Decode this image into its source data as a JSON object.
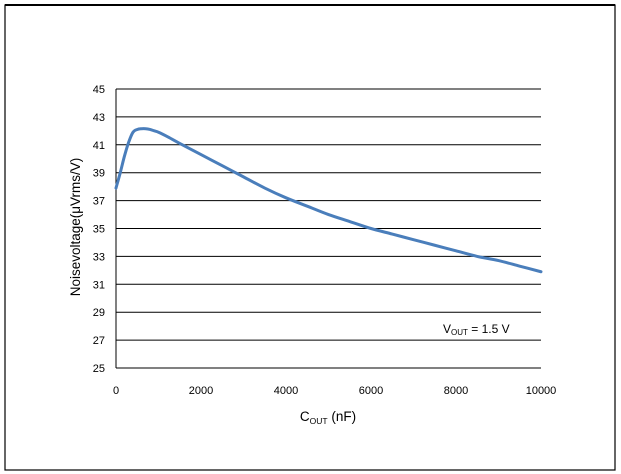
{
  "chart_data": {
    "type": "line",
    "title": "",
    "xlabel": "C",
    "xlabel_sub": "OUT",
    "xlabel_unit": " (nF)",
    "ylabel": "Noisevoltage(μVrms/V)",
    "xlim": [
      0,
      10000
    ],
    "ylim": [
      25,
      45
    ],
    "xticks": [
      0,
      2000,
      4000,
      6000,
      8000,
      10000
    ],
    "yticks": [
      25,
      27,
      29,
      31,
      33,
      35,
      37,
      39,
      41,
      43,
      45
    ],
    "grid": "horizontal",
    "annotation": {
      "main": "V",
      "sub": "OUT",
      "rest": " = 1.5 V"
    },
    "series": [
      {
        "color": "#4a7ebb",
        "x": [
          0,
          100,
          200,
          300,
          400,
          500,
          600,
          700,
          800,
          900,
          1000,
          1200,
          1500,
          2000,
          2500,
          3000,
          3500,
          4000,
          4500,
          5000,
          5500,
          6000,
          6500,
          7000,
          7500,
          8000,
          8500,
          9000,
          9500,
          10000
        ],
        "y": [
          37.9,
          39.0,
          40.2,
          41.2,
          41.9,
          42.1,
          42.15,
          42.15,
          42.1,
          42.0,
          41.9,
          41.6,
          41.1,
          40.3,
          39.5,
          38.7,
          37.9,
          37.2,
          36.6,
          36.0,
          35.5,
          35.0,
          34.6,
          34.2,
          33.8,
          33.4,
          33.0,
          32.7,
          32.3,
          31.9
        ]
      }
    ]
  }
}
